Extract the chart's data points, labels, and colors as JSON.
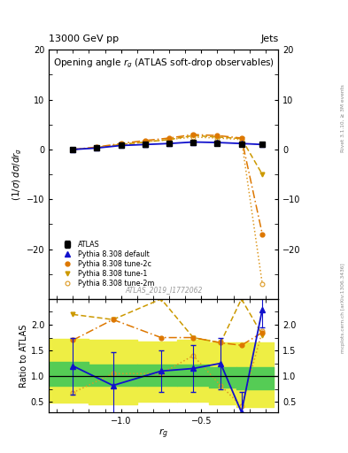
{
  "title": "Opening angle $r_g$ (ATLAS soft-drop observables)",
  "header_left": "13000 GeV pp",
  "header_right": "Jets",
  "ylabel_main": "$(1/\\sigma)\\, d\\sigma/d r_g$",
  "ylabel_ratio": "Ratio to ATLAS",
  "xlabel": "$r_g$",
  "rivet_text": "Rivet 3.1.10, ≥ 3M events",
  "mcplots_text": "mcplots.cern.ch [arXiv:1306.3436]",
  "inspire_text": "ATLAS_2019_I1772062",
  "ylim_main": [
    -30,
    20
  ],
  "ylim_ratio": [
    0.3,
    2.5
  ],
  "xlim": [
    -1.45,
    -0.02
  ],
  "x_ticks_main": [
    -1.0,
    -0.5
  ],
  "x_ticks_ratio": [
    -1.0,
    -0.5
  ],
  "x_values": [
    -1.3,
    -1.15,
    -1.0,
    -0.85,
    -0.7,
    -0.55,
    -0.4,
    -0.25,
    -0.12
  ],
  "atlas_y": [
    0.0,
    0.3,
    0.8,
    1.0,
    1.2,
    1.4,
    1.3,
    1.1,
    1.0
  ],
  "atlas_yerr": [
    0.2,
    0.3,
    0.3,
    0.4,
    0.4,
    0.4,
    0.4,
    0.4,
    0.3
  ],
  "pythia_default_y": [
    0.0,
    0.3,
    0.8,
    1.0,
    1.2,
    1.5,
    1.4,
    1.2,
    1.0
  ],
  "pythia_tune1_y": [
    0.0,
    0.4,
    1.0,
    1.5,
    2.0,
    2.8,
    2.5,
    2.2,
    -5.0
  ],
  "pythia_tune2c_y": [
    0.0,
    0.5,
    1.2,
    1.8,
    2.3,
    3.0,
    2.8,
    2.3,
    -17.0
  ],
  "pythia_tune2m_y": [
    0.0,
    0.4,
    1.0,
    1.5,
    2.0,
    2.5,
    2.3,
    2.0,
    -27.0
  ],
  "ratio_x": [
    -1.3,
    -1.05,
    -0.75,
    -0.55,
    -0.38,
    -0.25,
    -0.12
  ],
  "ratio_default": [
    1.2,
    0.82,
    1.1,
    1.15,
    1.25,
    0.3,
    2.3
  ],
  "ratio_tune1": [
    2.2,
    2.1,
    2.5,
    1.75,
    1.65,
    2.5,
    1.8
  ],
  "ratio_tune2c": [
    1.7,
    2.1,
    1.75,
    1.75,
    1.65,
    1.6,
    1.85
  ],
  "ratio_tune2m": [
    0.68,
    1.05,
    1.05,
    1.4,
    0.82,
    0.42,
    1.88
  ],
  "ratio_default_err": [
    0.55,
    0.65,
    0.4,
    0.45,
    0.5,
    0.4,
    0.35
  ],
  "band_edges": [
    -1.45,
    -1.2,
    -0.9,
    -0.65,
    -0.45,
    -0.28,
    -0.05
  ],
  "green_lo": [
    0.82,
    0.82,
    0.82,
    0.82,
    0.78,
    0.75
  ],
  "green_hi": [
    1.28,
    1.22,
    1.22,
    1.22,
    1.18,
    1.18
  ],
  "yellow_lo": [
    0.48,
    0.45,
    0.5,
    0.5,
    0.45,
    0.4
  ],
  "yellow_hi": [
    1.72,
    1.7,
    1.68,
    1.7,
    1.65,
    1.65
  ],
  "color_atlas": "#000000",
  "color_default": "#1111cc",
  "color_tune1": "#cc9900",
  "color_tune2c": "#dd7700",
  "color_tune2m": "#dd9922",
  "color_green": "#55cc55",
  "color_yellow": "#eeee44",
  "bg": "#ffffff"
}
